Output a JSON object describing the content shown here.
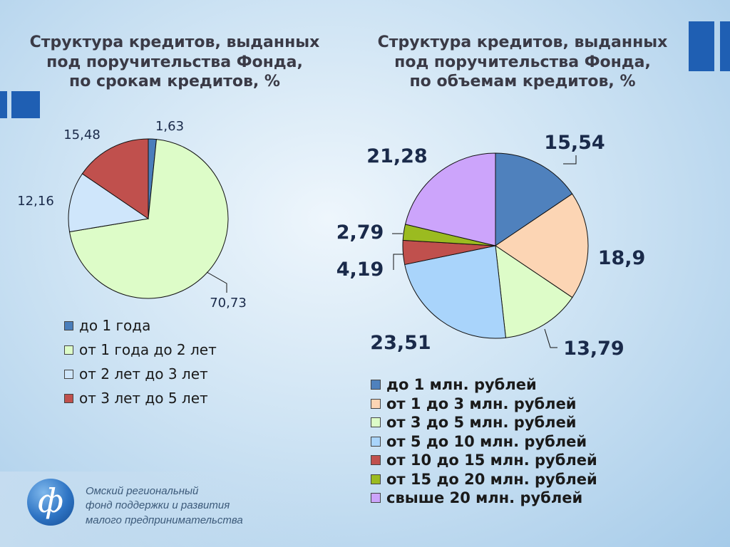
{
  "chart_data": [
    {
      "type": "pie",
      "title": "Структура кредитов, выданных под поручительства Фонда, по срокам кредитов, %",
      "title_lines": [
        "Структура кредитов, выданных",
        "под поручительства Фонда,",
        "по срокам кредитов, %"
      ],
      "categories": [
        "до 1 года",
        "от 1 года до 2 лет",
        "от 2 лет до 3 лет",
        "от 3 лет до 5 лет"
      ],
      "values": [
        1.63,
        70.73,
        12.16,
        15.48
      ],
      "value_labels": [
        "1,63",
        "70,73",
        "12,16",
        "15,48"
      ],
      "colors": [
        "#4a7ebb",
        "#ddfcc8",
        "#cfe6fb",
        "#c0504d"
      ],
      "legend_position": "bottom"
    },
    {
      "type": "pie",
      "title": "Структура кредитов, выданных под поручительства Фонда, по объемам кредитов, %",
      "title_lines": [
        "Структура кредитов, выданных",
        "под поручительства Фонда,",
        "по объемам кредитов, %"
      ],
      "categories": [
        "до 1 млн. рублей",
        "от 1 до 3 млн. рублей",
        "от 3 до 5 млн. рублей",
        "от 5 до 10 млн. рублей",
        "от 10 до 15 млн. рублей",
        "от 15 до 20 млн. рублей",
        "свыше 20 млн. рублей"
      ],
      "values": [
        15.54,
        18.9,
        13.79,
        23.51,
        4.19,
        2.79,
        21.28
      ],
      "value_labels": [
        "15,54",
        "18,9",
        "13,79",
        "23,51",
        "4,19",
        "2,79",
        "21,28"
      ],
      "colors": [
        "#4f81bd",
        "#fcd5b4",
        "#ddfcc8",
        "#a9d4fb",
        "#c0504d",
        "#9bbb20",
        "#cca4fb"
      ],
      "legend_position": "bottom"
    }
  ],
  "footer": {
    "lines": [
      "Омский региональный",
      "фонд поддержки и развития",
      "малого предпринимательства"
    ]
  }
}
